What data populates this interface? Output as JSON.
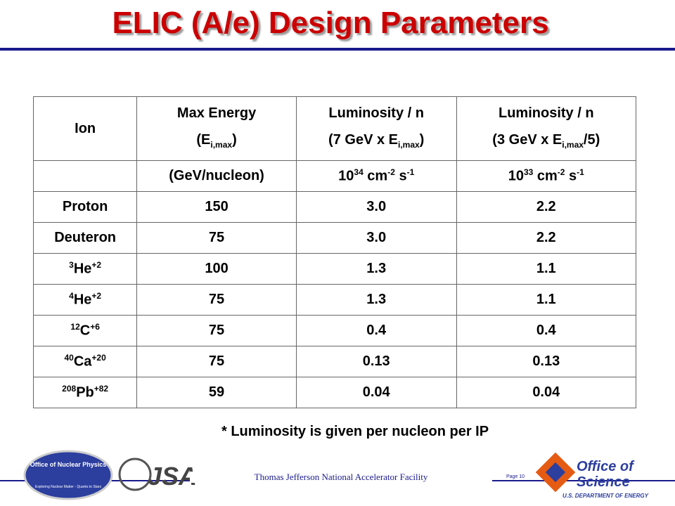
{
  "title": "ELIC (A/e) Design Parameters",
  "table": {
    "rows": [
      [
        [
          [
            "Ion"
          ]
        ],
        [
          [
            "Max Energy"
          ],
          [
            "(E",
            {
              "sub": "i,max"
            },
            ")"
          ]
        ],
        [
          [
            "Luminosity / n"
          ],
          [
            "(7 GeV x E",
            {
              "sub": "i,max"
            },
            ")"
          ]
        ],
        [
          [
            "Luminosity / n"
          ],
          [
            "(3 GeV x E",
            {
              "sub": "i,max"
            },
            "/5)"
          ]
        ]
      ],
      [
        [],
        [
          [
            "(GeV/nucleon)"
          ]
        ],
        [
          [
            "10",
            {
              "sup": "34"
            },
            " cm",
            {
              "sup": "-2"
            },
            " s",
            {
              "sup": "-1"
            }
          ]
        ],
        [
          [
            "10",
            {
              "sup": "33"
            },
            " cm",
            {
              "sup": "-2"
            },
            " s",
            {
              "sup": "-1"
            }
          ]
        ]
      ],
      [
        [
          [
            "Proton"
          ]
        ],
        [
          [
            "150"
          ]
        ],
        [
          [
            "3.0"
          ]
        ],
        [
          [
            "2.2"
          ]
        ]
      ],
      [
        [
          [
            "Deuteron"
          ]
        ],
        [
          [
            "75"
          ]
        ],
        [
          [
            "3.0"
          ]
        ],
        [
          [
            "2.2"
          ]
        ]
      ],
      [
        [
          [
            {
              "sup": "3"
            },
            "He",
            {
              "sup": "+2"
            }
          ]
        ],
        [
          [
            "100"
          ]
        ],
        [
          [
            "1.3"
          ]
        ],
        [
          [
            "1.1"
          ]
        ]
      ],
      [
        [
          [
            {
              "sup": "4"
            },
            "He",
            {
              "sup": "+2"
            }
          ]
        ],
        [
          [
            "75"
          ]
        ],
        [
          [
            "1.3"
          ]
        ],
        [
          [
            "1.1"
          ]
        ]
      ],
      [
        [
          [
            {
              "sup": "12"
            },
            "C",
            {
              "sup": "+6"
            }
          ]
        ],
        [
          [
            "75"
          ]
        ],
        [
          [
            "0.4"
          ]
        ],
        [
          [
            "0.4"
          ]
        ]
      ],
      [
        [
          [
            {
              "sup": "40"
            },
            "Ca",
            {
              "sup": "+20"
            }
          ]
        ],
        [
          [
            "75"
          ]
        ],
        [
          [
            "0.13"
          ]
        ],
        [
          [
            "0.13"
          ]
        ]
      ],
      [
        [
          [
            {
              "sup": "208"
            },
            "Pb",
            {
              "sup": "+82"
            }
          ]
        ],
        [
          [
            "59"
          ]
        ],
        [
          [
            "0.04"
          ]
        ],
        [
          [
            "0.04"
          ]
        ]
      ]
    ]
  },
  "footnote": "* Luminosity is given per nucleon per IP",
  "footer": {
    "facility": "Thomas Jefferson National Accelerator Facility",
    "page": "Page 10"
  },
  "logos": {
    "nuclear_physics": {
      "title": "Office of Nuclear Physics",
      "motto": "Exploring Nuclear Matter - Quarks to Stars"
    },
    "jsa": "JSA",
    "science": {
      "line1": "Office of",
      "line2": "Science",
      "department": "U.S. DEPARTMENT OF ENERGY"
    }
  }
}
